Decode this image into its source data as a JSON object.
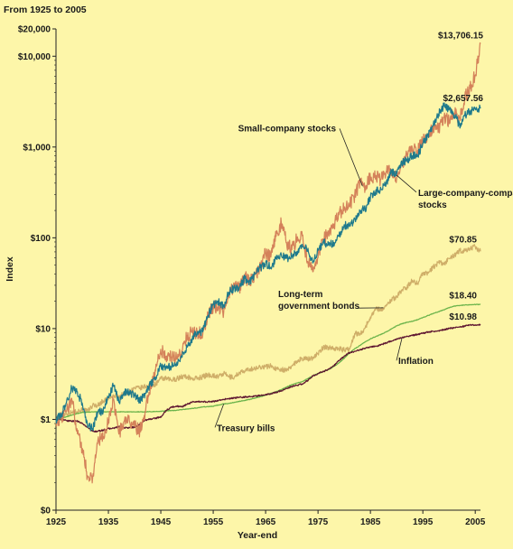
{
  "chart_data": {
    "type": "line",
    "subtitle": "From 1925 to 2005",
    "xlabel": "Year-end",
    "ylabel": "Index",
    "scale": "log",
    "xlim": [
      1925,
      2006
    ],
    "ylim": [
      0.1,
      20000
    ],
    "x_ticks": [
      1925,
      1935,
      1945,
      1955,
      1965,
      1975,
      1985,
      1995,
      2005
    ],
    "y_ticks": [
      {
        "value": 0.1,
        "label": "$0"
      },
      {
        "value": 1,
        "label": "$1"
      },
      {
        "value": 10,
        "label": "$10"
      },
      {
        "value": 100,
        "label": "$100"
      },
      {
        "value": 1000,
        "label": "$1,000"
      },
      {
        "value": 10000,
        "label": "$10,000"
      },
      {
        "value": 20000,
        "label": "$20,000"
      }
    ],
    "series": [
      {
        "key": "small",
        "label": "Small-company stocks",
        "color": "#d4825a",
        "end_label": "$13,706.15",
        "label_pos": "above-left",
        "x": [
          1925,
          1926,
          1927,
          1928,
          1929,
          1930,
          1931,
          1932,
          1933,
          1934,
          1935,
          1936,
          1937,
          1938,
          1939,
          1940,
          1941,
          1942,
          1943,
          1944,
          1945,
          1946,
          1947,
          1948,
          1949,
          1950,
          1951,
          1952,
          1953,
          1954,
          1955,
          1956,
          1957,
          1958,
          1959,
          1960,
          1961,
          1962,
          1963,
          1964,
          1965,
          1966,
          1967,
          1968,
          1969,
          1970,
          1971,
          1972,
          1973,
          1974,
          1975,
          1976,
          1977,
          1978,
          1979,
          1980,
          1981,
          1982,
          1983,
          1984,
          1985,
          1986,
          1987,
          1988,
          1989,
          1990,
          1991,
          1992,
          1993,
          1994,
          1995,
          1996,
          1997,
          1998,
          1999,
          2000,
          2001,
          2002,
          2003,
          2004,
          2005,
          2006
        ],
        "y": [
          1.0,
          1.0,
          1.22,
          1.7,
          0.79,
          0.48,
          0.24,
          0.23,
          0.59,
          0.61,
          0.99,
          1.67,
          0.69,
          0.95,
          0.96,
          0.83,
          0.75,
          1.2,
          2.35,
          3.4,
          5.9,
          4.95,
          4.87,
          4.67,
          5.67,
          8.4,
          9.0,
          9.2,
          8.7,
          14.3,
          17.0,
          17.8,
          15.2,
          25.1,
          28.8,
          27.7,
          37.4,
          32.0,
          39.3,
          48.0,
          67.5,
          61.4,
          103.6,
          144.4,
          88.7,
          73.9,
          98.0,
          105.0,
          55.0,
          42.2,
          60.5,
          93.2,
          114.6,
          137.0,
          180.0,
          220.0,
          230.0,
          290.0,
          420.0,
          370.0,
          460.0,
          470.0,
          440.0,
          540.0,
          560.0,
          455.0,
          650.0,
          800.0,
          950.0,
          920.0,
          1190.0,
          1400.0,
          1690.0,
          1600.0,
          2100.0,
          1950.0,
          2350.0,
          2100.0,
          3500.0,
          4400.0,
          6200.0,
          13706.15
        ]
      },
      {
        "key": "large",
        "label": "Large-company stocks",
        "label_line2": "stocks",
        "color": "#1f7a8c",
        "end_label": "$2,657.56",
        "label_pos": "below-right",
        "x": [
          1925,
          1926,
          1927,
          1928,
          1929,
          1930,
          1931,
          1932,
          1933,
          1934,
          1935,
          1936,
          1937,
          1938,
          1939,
          1940,
          1941,
          1942,
          1943,
          1944,
          1945,
          1946,
          1947,
          1948,
          1949,
          1950,
          1951,
          1952,
          1953,
          1954,
          1955,
          1956,
          1957,
          1958,
          1959,
          1960,
          1961,
          1962,
          1963,
          1964,
          1965,
          1966,
          1967,
          1968,
          1969,
          1970,
          1971,
          1972,
          1973,
          1974,
          1975,
          1976,
          1977,
          1978,
          1979,
          1980,
          1981,
          1982,
          1983,
          1984,
          1985,
          1986,
          1987,
          1988,
          1989,
          1990,
          1991,
          1992,
          1993,
          1994,
          1995,
          1996,
          1997,
          1998,
          1999,
          2000,
          2001,
          2002,
          2003,
          2004,
          2005,
          2006
        ],
        "y": [
          1.0,
          1.12,
          1.54,
          2.2,
          2.02,
          1.52,
          0.86,
          0.79,
          1.21,
          1.2,
          1.77,
          2.37,
          1.54,
          2.02,
          2.01,
          1.81,
          1.6,
          1.93,
          2.43,
          2.91,
          3.97,
          3.64,
          3.85,
          4.07,
          4.83,
          6.3,
          7.8,
          9.3,
          9.2,
          14.0,
          18.4,
          19.6,
          17.5,
          25.1,
          28.1,
          28.3,
          35.9,
          32.8,
          40.2,
          46.9,
          52.7,
          47.4,
          58.7,
          65.2,
          59.6,
          62.0,
          70.9,
          84.3,
          72.0,
          52.9,
          72.6,
          89.9,
          83.4,
          88.9,
          105.3,
          139.4,
          132.6,
          161.0,
          197.2,
          209.6,
          276.9,
          328.0,
          345.2,
          402.0,
          529.0,
          512.0,
          669.0,
          720.0,
          792.0,
          803.0,
          1100.0,
          1350.0,
          1800.0,
          2320.0,
          2810.0,
          2550.0,
          2240.0,
          1750.0,
          2250.0,
          2490.0,
          2600.0,
          2657.56
        ]
      },
      {
        "key": "bonds",
        "label": "Long-term government bonds",
        "label_line1": "Long-term",
        "label_line2": "government bonds",
        "color": "#cfae68",
        "end_label": "$70.85",
        "x": [
          1925,
          1926,
          1927,
          1928,
          1929,
          1930,
          1931,
          1932,
          1933,
          1934,
          1935,
          1936,
          1937,
          1938,
          1939,
          1940,
          1941,
          1942,
          1943,
          1944,
          1945,
          1946,
          1947,
          1948,
          1949,
          1950,
          1951,
          1952,
          1953,
          1954,
          1955,
          1956,
          1957,
          1958,
          1959,
          1960,
          1961,
          1962,
          1963,
          1964,
          1965,
          1966,
          1967,
          1968,
          1969,
          1970,
          1971,
          1972,
          1973,
          1974,
          1975,
          1976,
          1977,
          1978,
          1979,
          1980,
          1981,
          1982,
          1983,
          1984,
          1985,
          1986,
          1987,
          1988,
          1989,
          1990,
          1991,
          1992,
          1993,
          1994,
          1995,
          1996,
          1997,
          1998,
          1999,
          2000,
          2001,
          2002,
          2003,
          2004,
          2005,
          2006
        ],
        "y": [
          1.0,
          1.08,
          1.17,
          1.18,
          1.22,
          1.29,
          1.22,
          1.43,
          1.43,
          1.6,
          1.68,
          1.8,
          1.8,
          1.9,
          2.0,
          2.2,
          2.2,
          2.3,
          2.35,
          2.45,
          2.8,
          2.8,
          2.7,
          2.8,
          2.95,
          2.95,
          2.8,
          2.85,
          2.95,
          3.1,
          3.05,
          2.95,
          3.2,
          2.95,
          2.9,
          3.3,
          3.35,
          3.6,
          3.6,
          3.8,
          3.8,
          3.9,
          3.6,
          3.6,
          3.4,
          3.9,
          4.4,
          4.7,
          4.6,
          4.8,
          5.3,
          6.2,
          6.2,
          6.1,
          6.0,
          5.8,
          5.9,
          8.8,
          8.8,
          10.2,
          13.4,
          16.6,
          16.2,
          17.7,
          21.0,
          22.3,
          26.6,
          28.7,
          33.9,
          31.3,
          41.2,
          40.8,
          47.3,
          53.4,
          51.2,
          59.2,
          63.3,
          71.9,
          71.7,
          76.3,
          80.0,
          70.85
        ]
      },
      {
        "key": "tbills",
        "label": "Treasury bills",
        "color": "#6ab34a",
        "end_label": "$18.40",
        "x": [
          1925,
          1926,
          1927,
          1928,
          1929,
          1930,
          1931,
          1932,
          1933,
          1934,
          1935,
          1936,
          1937,
          1938,
          1939,
          1940,
          1941,
          1942,
          1943,
          1944,
          1945,
          1946,
          1947,
          1948,
          1949,
          1950,
          1951,
          1952,
          1953,
          1954,
          1955,
          1956,
          1957,
          1958,
          1959,
          1960,
          1961,
          1962,
          1963,
          1964,
          1965,
          1966,
          1967,
          1968,
          1969,
          1970,
          1971,
          1972,
          1973,
          1974,
          1975,
          1976,
          1977,
          1978,
          1979,
          1980,
          1981,
          1982,
          1983,
          1984,
          1985,
          1986,
          1987,
          1988,
          1989,
          1990,
          1991,
          1992,
          1993,
          1994,
          1995,
          1996,
          1997,
          1998,
          1999,
          2000,
          2001,
          2002,
          2003,
          2004,
          2005,
          2006
        ],
        "y": [
          1.0,
          1.03,
          1.07,
          1.11,
          1.16,
          1.19,
          1.2,
          1.21,
          1.21,
          1.21,
          1.21,
          1.21,
          1.21,
          1.21,
          1.21,
          1.21,
          1.21,
          1.21,
          1.22,
          1.22,
          1.23,
          1.24,
          1.25,
          1.26,
          1.28,
          1.3,
          1.32,
          1.34,
          1.37,
          1.38,
          1.4,
          1.44,
          1.48,
          1.5,
          1.54,
          1.58,
          1.62,
          1.66,
          1.72,
          1.78,
          1.85,
          1.94,
          2.02,
          2.13,
          2.27,
          2.41,
          2.51,
          2.61,
          2.8,
          3.02,
          3.2,
          3.36,
          3.54,
          3.81,
          4.2,
          4.71,
          5.4,
          5.99,
          6.52,
          7.15,
          7.71,
          8.18,
          8.63,
          9.18,
          9.94,
          10.71,
          11.31,
          11.71,
          12.06,
          12.53,
          13.23,
          13.93,
          14.66,
          15.37,
          16.09,
          17.0,
          17.69,
          17.98,
          18.16,
          18.34,
          18.4,
          18.4
        ]
      },
      {
        "key": "inflation",
        "label": "Inflation",
        "color": "#5e1630",
        "end_label": "$10.98",
        "x": [
          1925,
          1926,
          1927,
          1928,
          1929,
          1930,
          1931,
          1932,
          1933,
          1934,
          1935,
          1936,
          1937,
          1938,
          1939,
          1940,
          1941,
          1942,
          1943,
          1944,
          1945,
          1946,
          1947,
          1948,
          1949,
          1950,
          1951,
          1952,
          1953,
          1954,
          1955,
          1956,
          1957,
          1958,
          1959,
          1960,
          1961,
          1962,
          1963,
          1964,
          1965,
          1966,
          1967,
          1968,
          1969,
          1970,
          1971,
          1972,
          1973,
          1974,
          1975,
          1976,
          1977,
          1978,
          1979,
          1980,
          1981,
          1982,
          1983,
          1984,
          1985,
          1986,
          1987,
          1988,
          1989,
          1990,
          1991,
          1992,
          1993,
          1994,
          1995,
          1996,
          1997,
          1998,
          1999,
          2000,
          2001,
          2002,
          2003,
          2004,
          2005,
          2006
        ],
        "y": [
          1.0,
          0.99,
          0.97,
          0.96,
          0.96,
          0.9,
          0.82,
          0.74,
          0.74,
          0.76,
          0.79,
          0.8,
          0.83,
          0.81,
          0.81,
          0.82,
          0.89,
          0.98,
          1.01,
          1.03,
          1.06,
          1.25,
          1.36,
          1.4,
          1.38,
          1.46,
          1.55,
          1.56,
          1.57,
          1.56,
          1.57,
          1.62,
          1.66,
          1.69,
          1.72,
          1.75,
          1.76,
          1.78,
          1.81,
          1.83,
          1.86,
          1.92,
          1.98,
          2.07,
          2.19,
          2.3,
          2.38,
          2.46,
          2.67,
          3.0,
          3.21,
          3.36,
          3.58,
          3.9,
          4.42,
          4.98,
          5.42,
          5.63,
          5.84,
          6.07,
          6.3,
          6.37,
          6.65,
          6.95,
          7.27,
          7.72,
          7.96,
          8.19,
          8.41,
          8.64,
          8.86,
          9.16,
          9.32,
          9.47,
          9.72,
          10.05,
          10.21,
          10.45,
          10.65,
          10.99,
          10.98,
          10.98
        ]
      }
    ]
  }
}
